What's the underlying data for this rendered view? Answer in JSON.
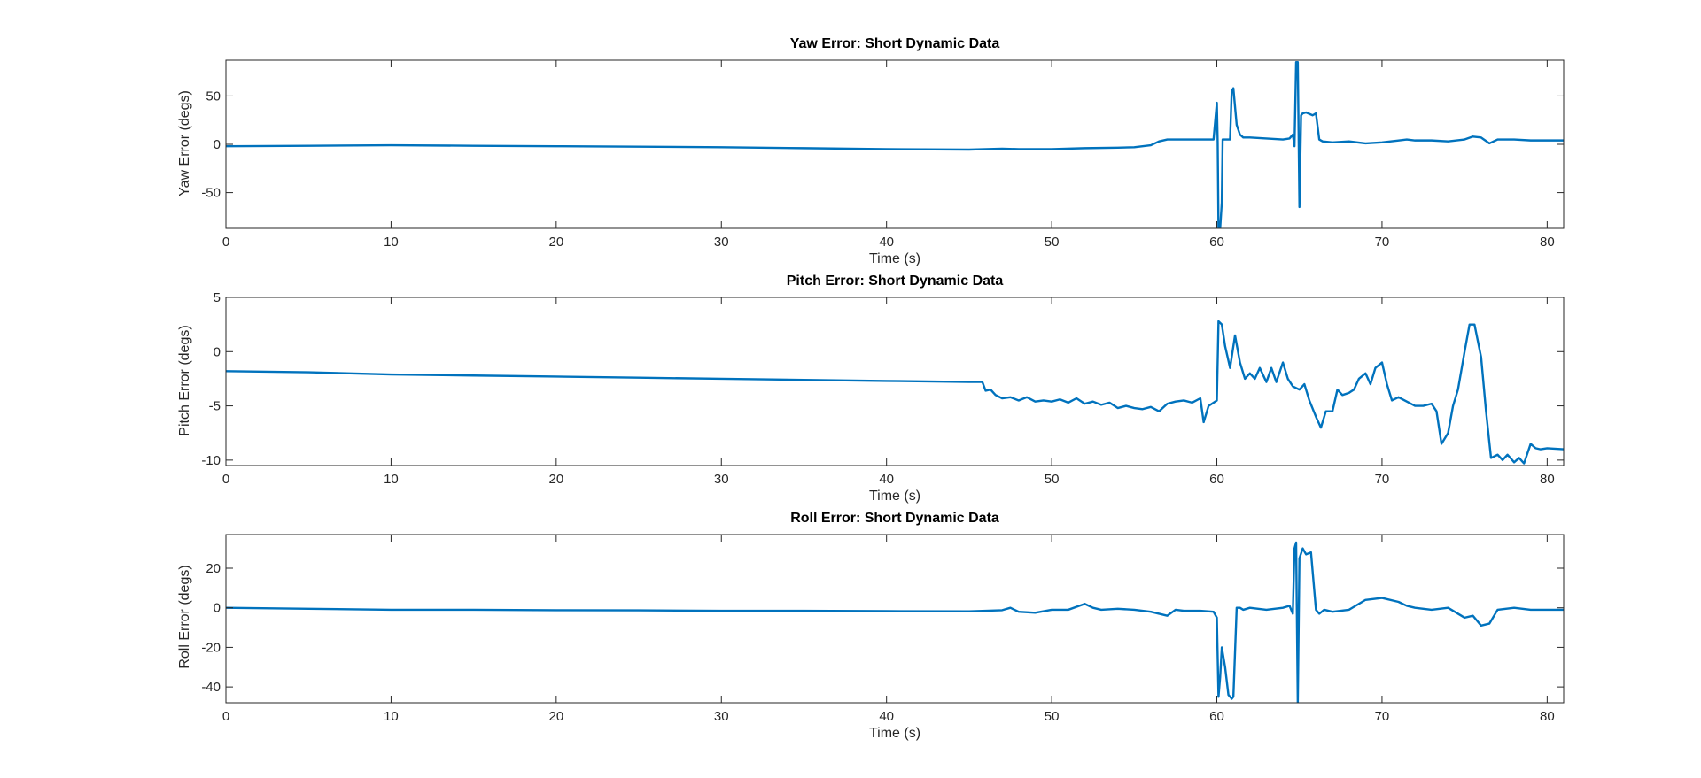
{
  "colors": {
    "series": "#0072BD",
    "axes": "#262626",
    "background": "#ffffff"
  },
  "chart_data": [
    {
      "type": "line",
      "title": "Yaw Error: Short Dynamic Data",
      "xlabel": "Time (s)",
      "ylabel": "Yaw Error (degs)",
      "xlim": [
        0,
        81
      ],
      "ylim": [
        -87,
        87
      ],
      "xticks": [
        0,
        10,
        20,
        30,
        40,
        50,
        60,
        70,
        80
      ],
      "yticks": [
        -50,
        0,
        50
      ],
      "grid": false,
      "series": [
        {
          "x": [
            0,
            5,
            10,
            15,
            20,
            25,
            30,
            35,
            40,
            45,
            46,
            47,
            48,
            50,
            52,
            54,
            55,
            56,
            56.5,
            57,
            58,
            59,
            59.8,
            60.0,
            60.05,
            60.1,
            60.2,
            60.3,
            60.35,
            60.5,
            60.8,
            60.9,
            61.0,
            61.2,
            61.4,
            61.6,
            62,
            63,
            64,
            64.4,
            64.6,
            64.7,
            64.8,
            64.9,
            65.0,
            65.1,
            65.2,
            65.4,
            65.8,
            66.0,
            66.2,
            66.4,
            67,
            68,
            69,
            70,
            71,
            71.5,
            72,
            73,
            74,
            75,
            75.5,
            76,
            76.5,
            77,
            78,
            79,
            80,
            81
          ],
          "y": [
            -2,
            -1.5,
            -1,
            -1.5,
            -2,
            -2.5,
            -3,
            -4,
            -5,
            -5.5,
            -5,
            -4.5,
            -5,
            -5,
            -4,
            -3.5,
            -3,
            -1,
            3,
            5,
            5,
            5,
            5,
            43,
            2,
            -87,
            -87,
            -60,
            5,
            5,
            5,
            55,
            58,
            20,
            10,
            7,
            7,
            6,
            5,
            6,
            10,
            -2,
            85,
            85,
            -65,
            30,
            32,
            33,
            30,
            32,
            5,
            3,
            2,
            3,
            1,
            2,
            4,
            5,
            4,
            4,
            3,
            5,
            8,
            7,
            1,
            5,
            5,
            4,
            4,
            4
          ]
        }
      ]
    },
    {
      "type": "line",
      "title": "Pitch Error: Short Dynamic Data",
      "xlabel": "Time (s)",
      "ylabel": "Pitch Error (degs)",
      "xlim": [
        0,
        81
      ],
      "ylim": [
        -10.5,
        5
      ],
      "xticks": [
        0,
        10,
        20,
        30,
        40,
        50,
        60,
        70,
        80
      ],
      "yticks": [
        -10,
        -5,
        0,
        5
      ],
      "grid": false,
      "series": [
        {
          "x": [
            0,
            5,
            10,
            15,
            20,
            25,
            30,
            35,
            40,
            45,
            45.8,
            46.0,
            46.3,
            46.6,
            47,
            47.5,
            48,
            48.5,
            49,
            49.5,
            50,
            50.5,
            51,
            51.5,
            52,
            52.5,
            53,
            53.5,
            54,
            54.5,
            55,
            55.5,
            56,
            56.5,
            57,
            57.5,
            58,
            58.5,
            59,
            59.2,
            59.5,
            60.0,
            60.1,
            60.3,
            60.5,
            60.8,
            61.1,
            61.4,
            61.7,
            62.0,
            62.3,
            62.6,
            63.0,
            63.3,
            63.6,
            64.0,
            64.3,
            64.6,
            65.0,
            65.3,
            65.6,
            66.0,
            66.3,
            66.6,
            67.0,
            67.3,
            67.6,
            68.0,
            68.3,
            68.6,
            69.0,
            69.3,
            69.6,
            70.0,
            70.3,
            70.6,
            71.0,
            71.5,
            72.0,
            72.5,
            73.0,
            73.3,
            73.6,
            74.0,
            74.3,
            74.6,
            75.0,
            75.3,
            75.6,
            76.0,
            76.3,
            76.6,
            77.0,
            77.3,
            77.6,
            78.0,
            78.3,
            78.6,
            79.0,
            79.3,
            79.6,
            80,
            81
          ],
          "y": [
            -1.8,
            -1.9,
            -2.1,
            -2.2,
            -2.3,
            -2.4,
            -2.5,
            -2.6,
            -2.7,
            -2.8,
            -2.8,
            -3.6,
            -3.5,
            -4.0,
            -4.3,
            -4.2,
            -4.5,
            -4.2,
            -4.6,
            -4.5,
            -4.6,
            -4.4,
            -4.7,
            -4.3,
            -4.8,
            -4.6,
            -4.9,
            -4.7,
            -5.2,
            -5.0,
            -5.2,
            -5.3,
            -5.1,
            -5.5,
            -4.8,
            -4.6,
            -4.5,
            -4.7,
            -4.3,
            -6.5,
            -5.0,
            -4.5,
            2.8,
            2.5,
            0.5,
            -1.5,
            1.5,
            -1.0,
            -2.5,
            -2.0,
            -2.5,
            -1.5,
            -2.8,
            -1.5,
            -2.8,
            -1.0,
            -2.5,
            -3.2,
            -3.5,
            -3.0,
            -4.5,
            -6.0,
            -7.0,
            -5.5,
            -5.5,
            -3.5,
            -4.0,
            -3.8,
            -3.5,
            -2.5,
            -2.0,
            -3.0,
            -1.5,
            -1.0,
            -3.0,
            -4.5,
            -4.2,
            -4.6,
            -5.0,
            -5.0,
            -4.8,
            -5.5,
            -8.5,
            -7.5,
            -5.0,
            -3.5,
            0.0,
            2.5,
            2.5,
            -0.5,
            -5.5,
            -9.8,
            -9.5,
            -10.0,
            -9.5,
            -10.2,
            -9.8,
            -10.3,
            -8.5,
            -8.9,
            -9.0,
            -8.9,
            -9.0
          ]
        }
      ]
    },
    {
      "type": "line",
      "title": "Roll Error: Short Dynamic Data",
      "xlabel": "Time (s)",
      "ylabel": "Roll Error (degs)",
      "xlim": [
        0,
        81
      ],
      "ylim": [
        -48,
        37
      ],
      "xticks": [
        0,
        10,
        20,
        30,
        40,
        50,
        60,
        70,
        80
      ],
      "yticks": [
        -40,
        -20,
        0,
        20
      ],
      "grid": false,
      "series": [
        {
          "x": [
            0,
            5,
            10,
            15,
            20,
            25,
            30,
            35,
            40,
            45,
            46,
            47,
            47.5,
            48,
            49,
            50,
            51,
            52,
            52.5,
            53,
            54,
            55,
            56,
            57,
            57.5,
            58,
            59,
            59.8,
            60.0,
            60.1,
            60.2,
            60.3,
            60.5,
            60.7,
            60.9,
            61.0,
            61.2,
            61.4,
            61.6,
            62,
            63,
            64,
            64.4,
            64.6,
            64.7,
            64.8,
            64.9,
            65.0,
            65.2,
            65.4,
            65.7,
            66.0,
            66.2,
            66.5,
            67,
            68,
            69,
            70,
            71,
            71.5,
            72,
            73,
            74,
            75,
            75.5,
            76,
            76.5,
            77,
            78,
            79,
            80,
            81
          ],
          "y": [
            0,
            -0.5,
            -1,
            -1,
            -1.2,
            -1.3,
            -1.5,
            -1.5,
            -1.7,
            -1.8,
            -1.5,
            -1.2,
            0,
            -2,
            -2.5,
            -1,
            -1,
            2,
            0,
            -1,
            -0.5,
            -1,
            -2,
            -4,
            -1,
            -1.5,
            -1.5,
            -2,
            -5,
            -45,
            -35,
            -20,
            -30,
            -44,
            -46,
            -45,
            0,
            0,
            -1,
            0,
            -1,
            0,
            1,
            -3,
            30,
            33,
            -48,
            25,
            30,
            27,
            28,
            -1,
            -3,
            -1,
            -2,
            -1,
            4,
            5,
            3,
            1,
            0,
            -1,
            0,
            -5,
            -4,
            -9,
            -8,
            -1,
            0,
            -1,
            -1,
            -1
          ]
        }
      ]
    }
  ]
}
